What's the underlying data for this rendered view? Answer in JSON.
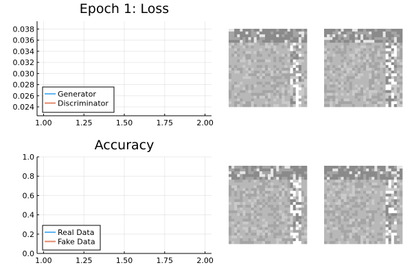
{
  "chart_data": [
    {
      "type": "line",
      "title": "Epoch 1: Loss",
      "xlabel": "",
      "ylabel": "",
      "xlim": [
        0.96,
        2.04
      ],
      "ylim": [
        0.0224,
        0.0394
      ],
      "xticks": [
        "1.00",
        "1.25",
        "1.50",
        "1.75",
        "2.00"
      ],
      "xtick_values": [
        1.0,
        1.25,
        1.5,
        1.75,
        2.0
      ],
      "yticks": [
        "0.024",
        "0.026",
        "0.028",
        "0.030",
        "0.032",
        "0.034",
        "0.036",
        "0.038"
      ],
      "ytick_values": [
        0.024,
        0.026,
        0.028,
        0.03,
        0.032,
        0.034,
        0.036,
        0.038
      ],
      "grid": true,
      "legend_position": "bottom-left",
      "series": [
        {
          "name": "Generator",
          "color": "#5eb4f3",
          "x": [],
          "y": []
        },
        {
          "name": "Discriminator",
          "color": "#e2876a",
          "x": [],
          "y": []
        }
      ]
    },
    {
      "type": "line",
      "title": "Accuracy",
      "xlabel": "",
      "ylabel": "",
      "xlim": [
        0.96,
        2.04
      ],
      "ylim": [
        0.0,
        1.0
      ],
      "xticks": [
        "1.00",
        "1.25",
        "1.50",
        "1.75",
        "2.00"
      ],
      "xtick_values": [
        1.0,
        1.25,
        1.5,
        1.75,
        2.0
      ],
      "yticks": [
        "0.0",
        "0.2",
        "0.4",
        "0.6",
        "0.8",
        "1.0"
      ],
      "ytick_values": [
        0.0,
        0.2,
        0.4,
        0.6,
        0.8,
        1.0
      ],
      "grid": true,
      "legend_position": "bottom-left",
      "series": [
        {
          "name": "Real Data",
          "color": "#5eb4f3",
          "x": [],
          "y": []
        },
        {
          "name": "Fake Data",
          "color": "#e2876a",
          "x": [],
          "y": []
        }
      ]
    }
  ],
  "sample_images": {
    "description_free": true,
    "count": 4,
    "grid_size": 28,
    "palette": [
      "#8a8a8a",
      "#a5a5a5",
      "#b8b8b8",
      "#cacaca",
      "#e6e6e6",
      "#ffffff"
    ]
  }
}
